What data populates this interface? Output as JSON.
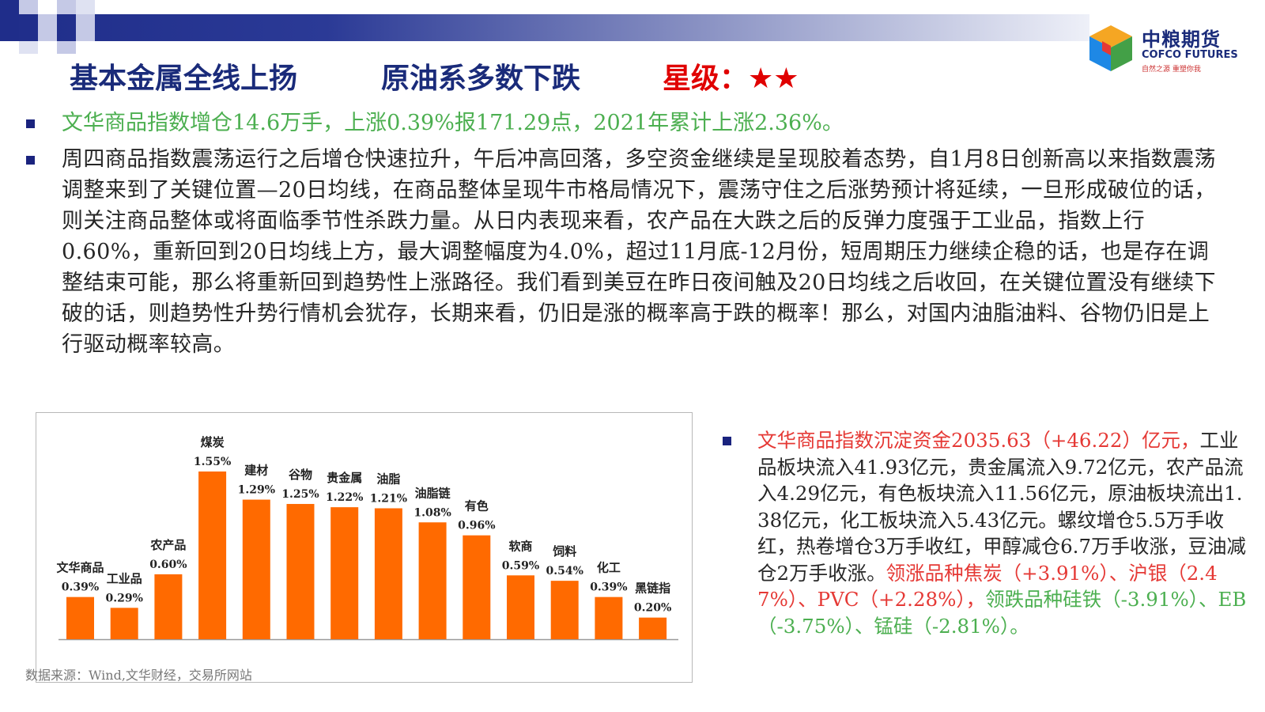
{
  "header": {
    "title_left": "基本金属全线上扬",
    "title_mid": "原油系多数下跌",
    "title_rating": "星级：★★"
  },
  "logo": {
    "cn": "中粮期货",
    "en": "COFCO FUTURES",
    "slogan": "自然之源  重塑你我"
  },
  "bullets": {
    "summary": "文华商品指数增仓14.6万手，上涨0.39%报171.29点，2021年累计上涨2.36%。",
    "analysis": "周四商品指数震荡运行之后增仓快速拉升，午后冲高回落，多空资金继续是呈现胶着态势，自1月8日创新高以来指数震荡调整来到了关键位置—20日均线，在商品整体呈现牛市格局情况下，震荡守住之后涨势预计将延续，一旦形成破位的话，则关注商品整体或将面临季节性杀跌力量。从日内表现来看，农产品在大跌之后的反弹力度强于工业品，指数上行0.60%，重新回到20日均线上方，最大调整幅度为4.0%，超过11月底-12月份，短周期压力继续企稳的话，也是存在调整结束可能，那么将重新回到趋势性上涨路径。我们看到美豆在昨日夜间触及20日均线之后收回，在关键位置没有继续下破的话，则趋势性升势行情机会犹存，长期来看，仍旧是涨的概率高于跌的概率！那么，对国内油脂油料、谷物仍旧是上行驱动概率较高。",
    "funds_red": "文华商品指数沉淀资金2035.63（+46.22）亿元，",
    "funds_black": "工业品板块流入41.93亿元，贵金属流入9.72亿元，农产品流入4.29亿元，有色板块流入11.56亿元，原油板块流出1.38亿元，化工板块流入5.43亿元。螺纹增仓5.5万手收红，热卷增仓3万手收红，甲醇减仓6.7万手收涨，豆油减仓2万手收涨。",
    "funds_red2": "领涨品种焦炭（+3.91%）、沪银（2.47%）、PVC（+2.28%），",
    "funds_green": "领跌品种硅铁（-3.91%）、EB（-3.75%）、锰硅（-2.81%）。"
  },
  "source": "数据来源：Wind,文华财经，交易所网站",
  "colors": {
    "bar": "#ff6a00",
    "title_blue": "#1a2b7a",
    "rating_red": "#e00000",
    "green_text": "#4caf50",
    "red_text": "#e53935"
  },
  "chart_data": {
    "type": "bar",
    "title": "",
    "xlabel": "",
    "ylabel": "",
    "categories": [
      "文华商品",
      "工业品",
      "农产品",
      "煤炭",
      "建材",
      "谷物",
      "贵金属",
      "油脂",
      "油脂链",
      "有色",
      "软商",
      "饲料",
      "化工",
      "黑链指"
    ],
    "values": [
      0.39,
      0.29,
      0.6,
      1.55,
      1.29,
      1.25,
      1.22,
      1.21,
      1.08,
      0.96,
      0.59,
      0.54,
      0.39,
      0.2
    ],
    "value_labels": [
      "0.39%",
      "0.29%",
      "0.60%",
      "1.55%",
      "1.29%",
      "1.25%",
      "1.22%",
      "1.21%",
      "1.08%",
      "0.96%",
      "0.59%",
      "0.54%",
      "0.39%",
      "0.20%"
    ],
    "ylim": [
      0,
      1.55
    ],
    "grid": false,
    "legend": "none"
  }
}
